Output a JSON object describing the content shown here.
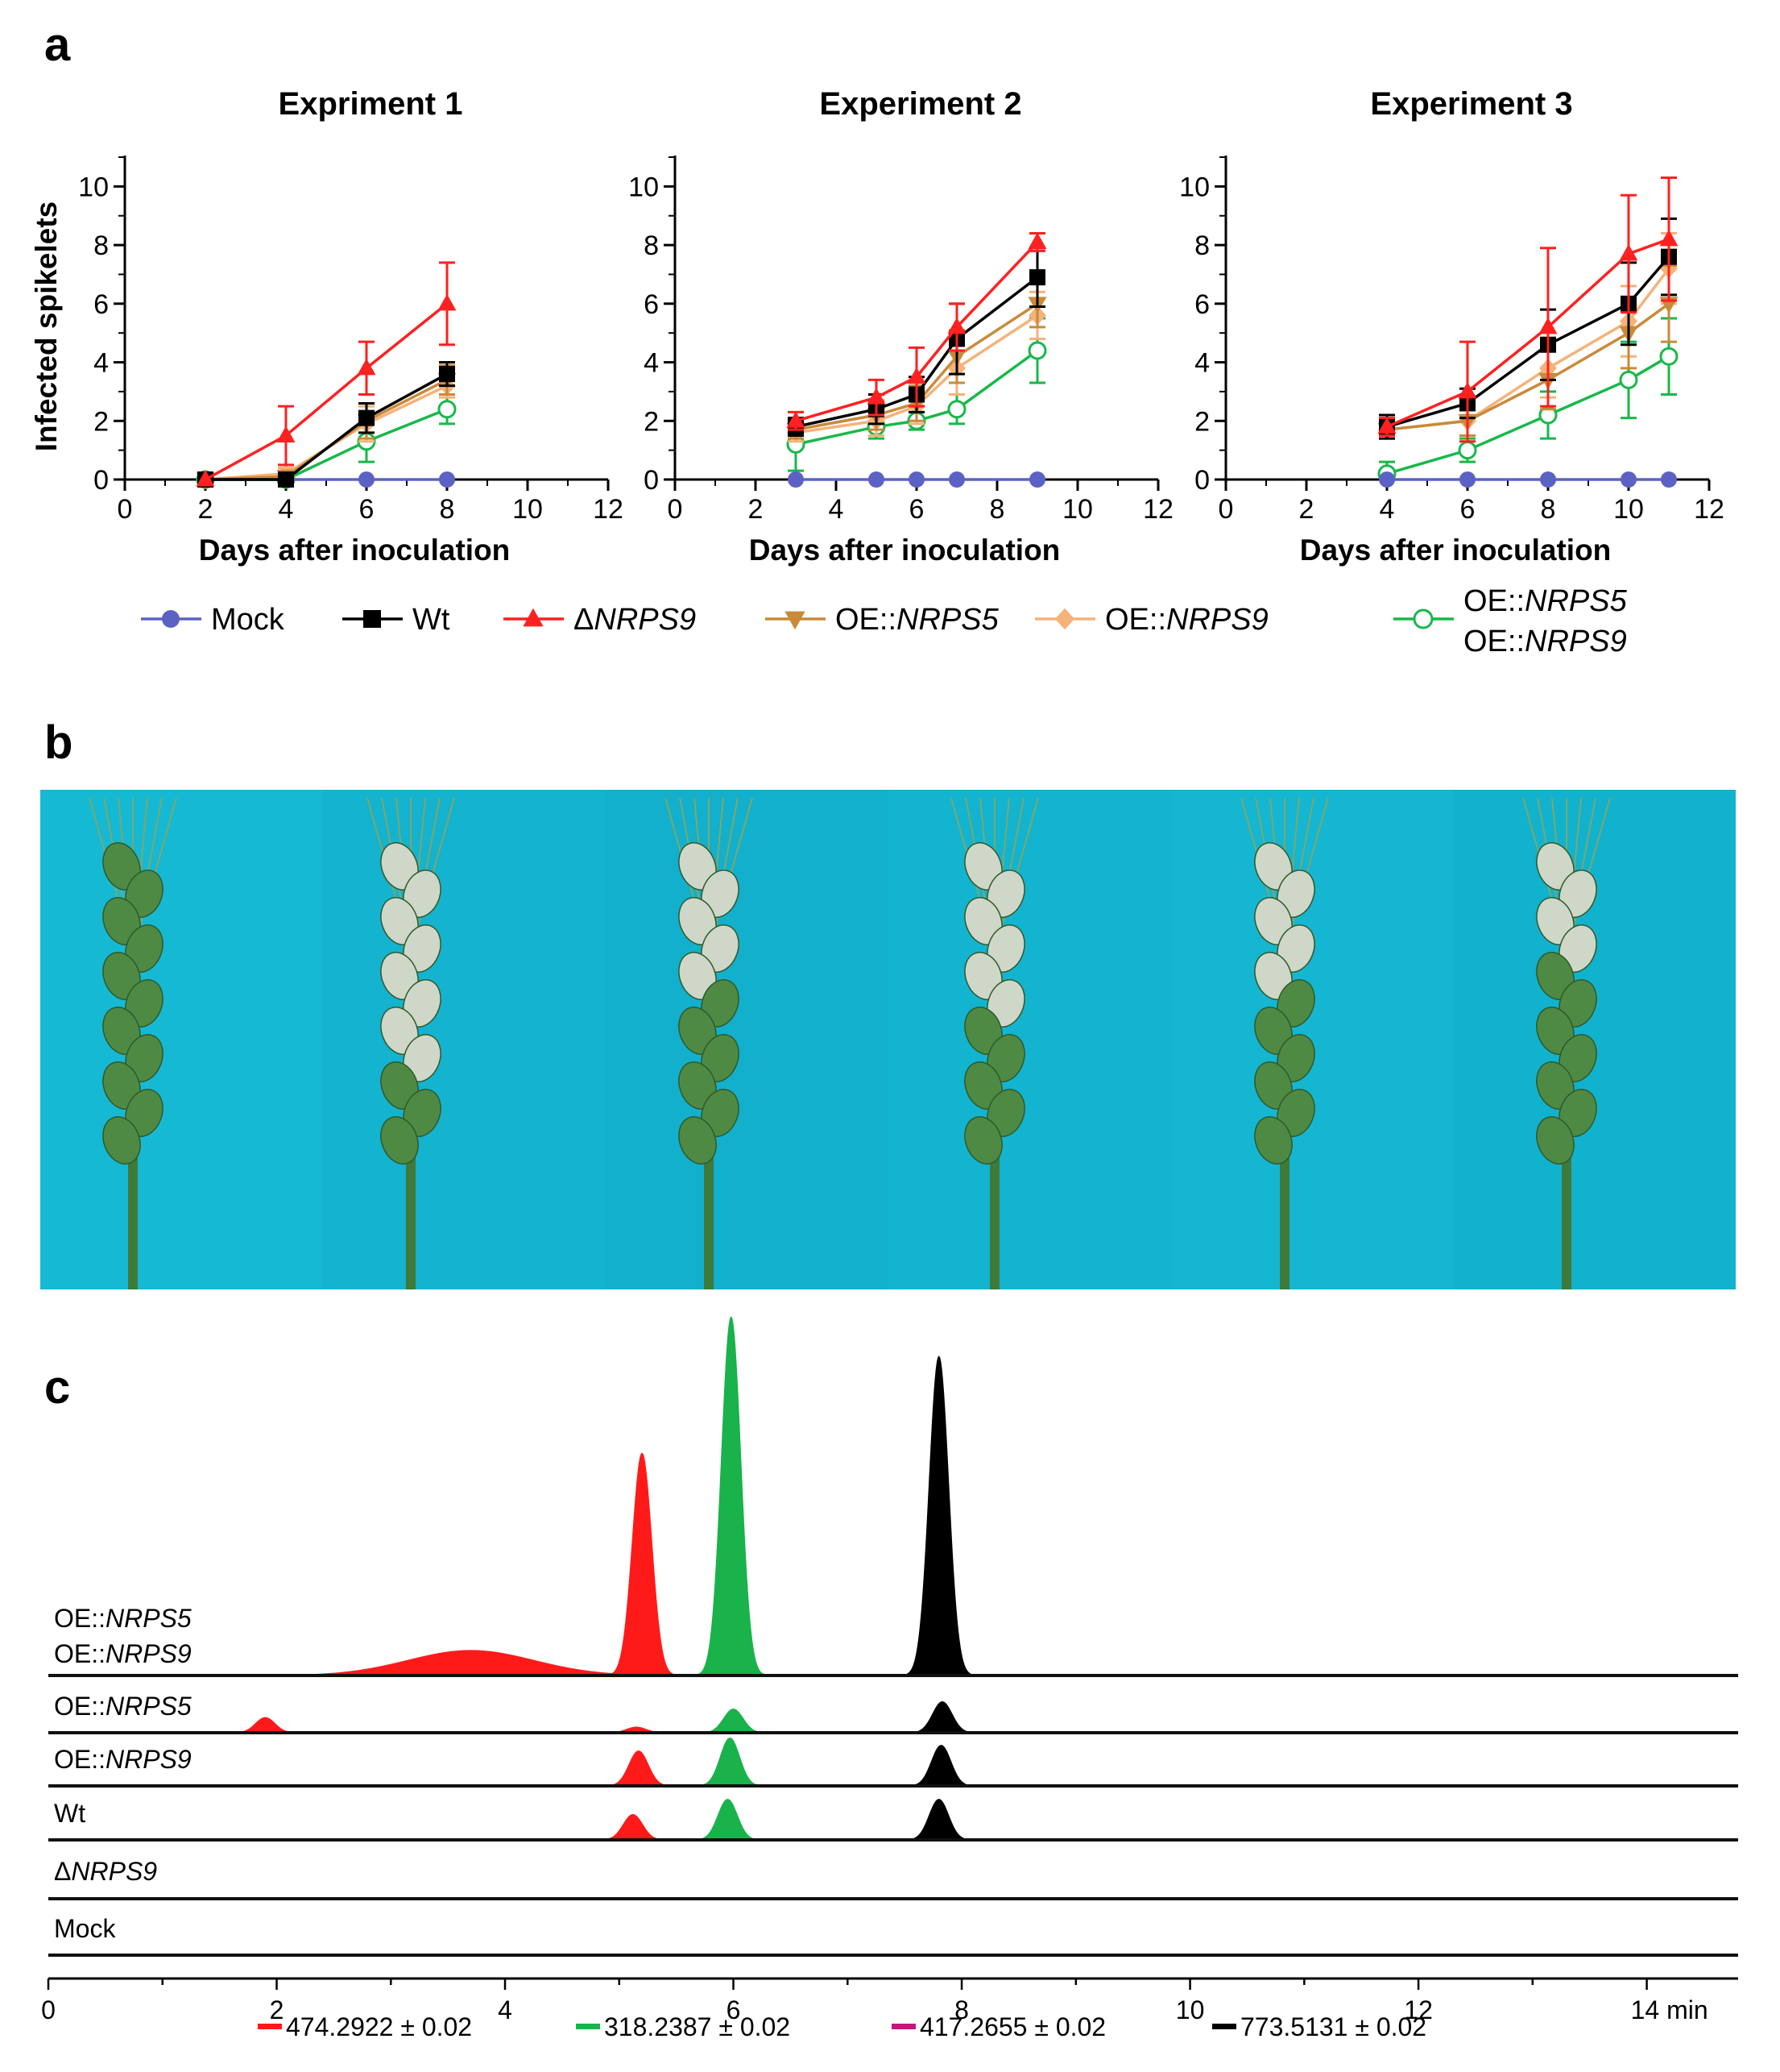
{
  "panel_labels": {
    "a": "a",
    "b": "b",
    "c": "c"
  },
  "legend_a": [
    {
      "label_prefix": "Mock",
      "label_italic": "",
      "marker": "circle-filled",
      "color": "#5b62c4"
    },
    {
      "label_prefix": "Wt",
      "label_italic": "",
      "marker": "square",
      "color": "#000000"
    },
    {
      "label_prefix": "Δ",
      "label_italic": "NRPS9",
      "marker": "triangle-up",
      "color": "#ff2020"
    },
    {
      "label_prefix": "OE::",
      "label_italic": "NRPS5",
      "marker": "triangle-down",
      "color": "#c98a3a"
    },
    {
      "label_prefix": "OE::",
      "label_italic": "NRPS9",
      "marker": "diamond",
      "color": "#f5b27a"
    },
    {
      "label_prefix": "OE::",
      "label_italic": "NRPS5",
      "label2_prefix": "OE::",
      "label2_italic": "NRPS9",
      "marker": "circle-open",
      "color": "#18b84a"
    }
  ],
  "chart_data": [
    {
      "type": "line",
      "title": "Expriment 1",
      "xlabel": "Days after inoculation",
      "ylabel": "Infected spikelets",
      "xlim": [
        0,
        12
      ],
      "ylim": [
        0,
        11
      ],
      "xticks": [
        0,
        2,
        4,
        6,
        8,
        10,
        12
      ],
      "yticks": [
        0,
        2,
        4,
        6,
        8,
        10
      ],
      "series": [
        {
          "name": "Mock",
          "x": [
            2,
            4,
            6,
            8
          ],
          "values": [
            0,
            0,
            0,
            0
          ],
          "err": [
            0,
            0,
            0,
            0
          ]
        },
        {
          "name": "Wt",
          "x": [
            2,
            4,
            6,
            8
          ],
          "values": [
            0,
            0,
            2.1,
            3.6
          ],
          "err": [
            0,
            0,
            0.5,
            0.4
          ]
        },
        {
          "name": "ΔNRPS9",
          "x": [
            2,
            4,
            6,
            8
          ],
          "values": [
            0,
            1.5,
            3.8,
            6.0
          ],
          "err": [
            0,
            1.0,
            0.9,
            1.4
          ]
        },
        {
          "name": "OE::NRPS5",
          "x": [
            2,
            4,
            6,
            8
          ],
          "values": [
            0,
            0.1,
            2.0,
            3.4
          ],
          "err": [
            0,
            0.2,
            0.6,
            0.5
          ]
        },
        {
          "name": "OE::NRPS9",
          "x": [
            2,
            4,
            6,
            8
          ],
          "values": [
            0,
            0.2,
            1.9,
            3.2
          ],
          "err": [
            0,
            0.2,
            0.6,
            0.4
          ]
        },
        {
          "name": "OE::NRPS5 OE::NRPS9",
          "x": [
            2,
            4,
            6,
            8
          ],
          "values": [
            0,
            0,
            1.3,
            2.4
          ],
          "err": [
            0,
            0,
            0.7,
            0.5
          ]
        }
      ]
    },
    {
      "type": "line",
      "title": "Experiment 2",
      "xlabel": "Days after inoculation",
      "ylabel": "",
      "xlim": [
        0,
        12
      ],
      "ylim": [
        0,
        11
      ],
      "xticks": [
        0,
        2,
        4,
        6,
        8,
        10,
        12
      ],
      "yticks": [
        0,
        2,
        4,
        6,
        8,
        10
      ],
      "series": [
        {
          "name": "Mock",
          "x": [
            3,
            5,
            6,
            7,
            9
          ],
          "values": [
            0,
            0,
            0,
            0,
            0
          ],
          "err": [
            0,
            0,
            0,
            0,
            0
          ]
        },
        {
          "name": "Wt",
          "x": [
            3,
            5,
            6,
            7,
            9
          ],
          "values": [
            1.8,
            2.4,
            2.9,
            4.8,
            6.9
          ],
          "err": [
            0.3,
            0.5,
            0.6,
            1.2,
            1.0
          ]
        },
        {
          "name": "ΔNRPS9",
          "x": [
            3,
            5,
            6,
            7,
            9
          ],
          "values": [
            2.0,
            2.8,
            3.5,
            5.2,
            8.1
          ],
          "err": [
            0.3,
            0.6,
            1.0,
            0.8,
            0.3
          ]
        },
        {
          "name": "OE::NRPS5",
          "x": [
            3,
            5,
            6,
            7,
            9
          ],
          "values": [
            1.7,
            2.2,
            2.6,
            4.2,
            6.0
          ],
          "err": [
            0.3,
            0.5,
            0.6,
            0.9,
            0.8
          ]
        },
        {
          "name": "OE::NRPS9",
          "x": [
            3,
            5,
            6,
            7,
            9
          ],
          "values": [
            1.6,
            2.0,
            2.5,
            3.8,
            5.6
          ],
          "err": [
            0.3,
            0.5,
            0.6,
            0.9,
            0.8
          ]
        },
        {
          "name": "OE::NRPS5 OE::NRPS9",
          "x": [
            3,
            5,
            6,
            7,
            9
          ],
          "values": [
            1.2,
            1.8,
            2.0,
            2.4,
            4.4
          ],
          "err": [
            0.9,
            0.4,
            0.3,
            0.5,
            1.1
          ]
        }
      ]
    },
    {
      "type": "line",
      "title": "Experiment 3",
      "xlabel": "Days after inoculation",
      "ylabel": "",
      "xlim": [
        0,
        12
      ],
      "ylim": [
        0,
        11
      ],
      "xticks": [
        0,
        2,
        4,
        6,
        8,
        10,
        12
      ],
      "yticks": [
        0,
        2,
        4,
        6,
        8,
        10
      ],
      "series": [
        {
          "name": "Mock",
          "x": [
            4,
            6,
            8,
            10,
            11
          ],
          "values": [
            0,
            0,
            0,
            0,
            0
          ],
          "err": [
            0,
            0,
            0,
            0,
            0
          ]
        },
        {
          "name": "Wt",
          "x": [
            4,
            6,
            8,
            10,
            11
          ],
          "values": [
            1.8,
            2.6,
            4.6,
            6.0,
            7.6
          ],
          "err": [
            0.4,
            0.5,
            1.2,
            1.4,
            1.3
          ]
        },
        {
          "name": "ΔNRPS9",
          "x": [
            4,
            6,
            8,
            10,
            11
          ],
          "values": [
            1.8,
            3.0,
            5.2,
            7.7,
            8.2
          ],
          "err": [
            0.3,
            1.7,
            2.7,
            2.0,
            2.1
          ]
        },
        {
          "name": "OE::NRPS5",
          "x": [
            4,
            6,
            8,
            10,
            11
          ],
          "values": [
            1.7,
            2.0,
            3.4,
            5.0,
            6.0
          ],
          "err": [
            0.3,
            0.5,
            1.0,
            1.2,
            1.3
          ]
        },
        {
          "name": "OE::NRPS9",
          "x": [
            4,
            6,
            8,
            10,
            11
          ],
          "values": [
            1.7,
            2.0,
            3.8,
            5.4,
            7.2
          ],
          "err": [
            0.3,
            0.5,
            1.0,
            1.2,
            1.2
          ]
        },
        {
          "name": "OE::NRPS5 OE::NRPS9",
          "x": [
            4,
            6,
            8,
            10,
            11
          ],
          "values": [
            0.2,
            1.0,
            2.2,
            3.4,
            4.2
          ],
          "err": [
            0.4,
            0.4,
            0.8,
            1.3,
            1.3
          ]
        }
      ]
    },
    {
      "type": "line",
      "subtype": "chromatogram",
      "xlabel_unit": "min",
      "xlim": [
        0,
        14.8
      ],
      "xticks": [
        0,
        2,
        4,
        6,
        8,
        10,
        12,
        14
      ],
      "tick_labels": [
        "0",
        "2",
        "4",
        "6",
        "8",
        "10",
        "12",
        "14 min"
      ],
      "ion_legend": [
        {
          "label": "474.2922 ± 0.02",
          "color": "#ff1a1a"
        },
        {
          "label": "318.2387 ± 0.02",
          "color": "#19b24b"
        },
        {
          "label": "417.2655 ± 0.02",
          "color": "#c2187a"
        },
        {
          "label": "773.5131 ± 0.02",
          "color": "#000000"
        }
      ],
      "traces": [
        {
          "name_prefix": "OE::",
          "name_italic": "NRPS5",
          "name2_prefix": "OE::",
          "name2_italic": "NRPS9",
          "peaks": [
            {
              "ion": "474.2922",
              "rt": 5.2,
              "height": 0.62
            },
            {
              "ion": "474.2922",
              "rt": 3.7,
              "height": 0.07,
              "broad": true
            },
            {
              "ion": "318.2387",
              "rt": 5.98,
              "height": 1.0
            },
            {
              "ion": "773.5131",
              "rt": 7.8,
              "height": 0.89
            }
          ]
        },
        {
          "name_prefix": "OE::",
          "name_italic": "NRPS5",
          "peaks": [
            {
              "ion": "474.2922",
              "rt": 1.9,
              "height": 0.27
            },
            {
              "ion": "474.2922",
              "rt": 5.15,
              "height": 0.1
            },
            {
              "ion": "318.2387",
              "rt": 6.0,
              "height": 0.42
            },
            {
              "ion": "773.5131",
              "rt": 7.83,
              "height": 0.55
            }
          ]
        },
        {
          "name_prefix": "OE::",
          "name_italic": "NRPS9",
          "peaks": [
            {
              "ion": "474.2922",
              "rt": 5.17,
              "height": 0.62
            },
            {
              "ion": "318.2387",
              "rt": 5.97,
              "height": 0.85
            },
            {
              "ion": "773.5131",
              "rt": 7.82,
              "height": 0.72
            }
          ]
        },
        {
          "name_prefix": "Wt",
          "name_italic": "",
          "peaks": [
            {
              "ion": "474.2922",
              "rt": 5.12,
              "height": 0.45
            },
            {
              "ion": "318.2387",
              "rt": 5.95,
              "height": 0.72
            },
            {
              "ion": "773.5131",
              "rt": 7.8,
              "height": 0.72
            }
          ]
        },
        {
          "name_prefix": "Δ",
          "name_italic": "NRPS9",
          "peaks": []
        },
        {
          "name_prefix": "Mock",
          "name_italic": "",
          "peaks": []
        }
      ]
    }
  ]
}
